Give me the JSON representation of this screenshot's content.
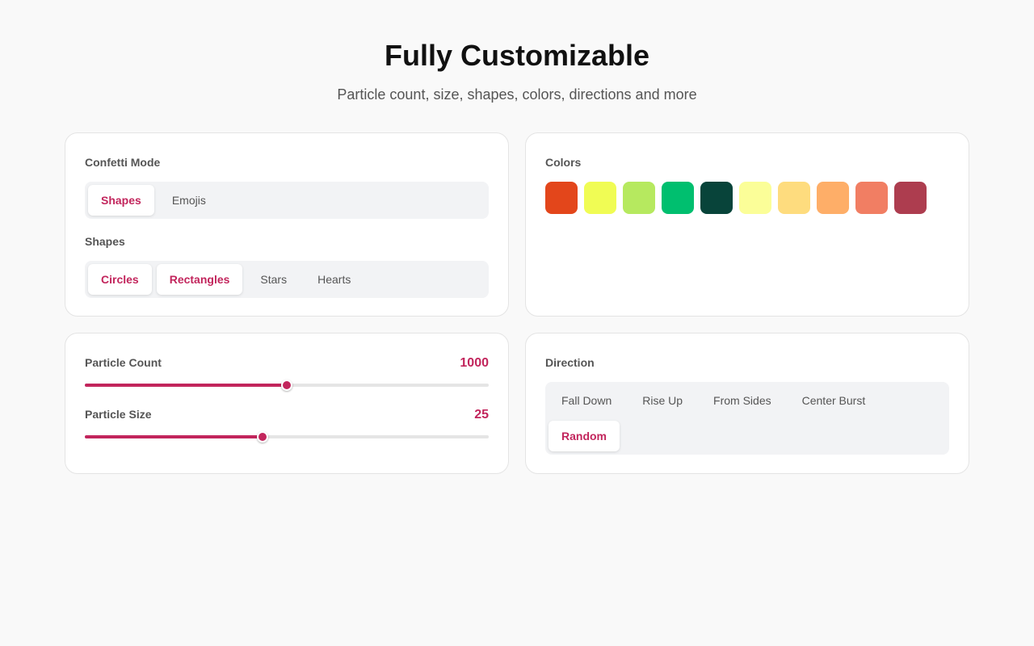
{
  "header": {
    "title": "Fully Customizable",
    "subtitle": "Particle count, size, shapes, colors, directions and more"
  },
  "confetti_mode": {
    "label": "Confetti Mode",
    "options": [
      {
        "label": "Shapes",
        "selected": true
      },
      {
        "label": "Emojis",
        "selected": false
      }
    ]
  },
  "shapes": {
    "label": "Shapes",
    "options": [
      {
        "label": "Circles",
        "selected": true
      },
      {
        "label": "Rectangles",
        "selected": true
      },
      {
        "label": "Stars",
        "selected": false
      },
      {
        "label": "Hearts",
        "selected": false
      }
    ]
  },
  "colors": {
    "label": "Colors",
    "swatches": [
      "#e3461b",
      "#f0fc54",
      "#b6e95f",
      "#00bf6f",
      "#08443a",
      "#fbfe98",
      "#fedc7e",
      "#feae68",
      "#f17e63",
      "#ad3d4f"
    ]
  },
  "sliders": [
    {
      "label": "Particle Count",
      "value": 1000
    },
    {
      "label": "Particle Size",
      "value": 25
    }
  ],
  "direction": {
    "label": "Direction",
    "options": [
      {
        "label": "Fall Down",
        "selected": false
      },
      {
        "label": "Rise Up",
        "selected": false
      },
      {
        "label": "From Sides",
        "selected": false
      },
      {
        "label": "Center Burst",
        "selected": false
      },
      {
        "label": "Random",
        "selected": true
      }
    ]
  }
}
